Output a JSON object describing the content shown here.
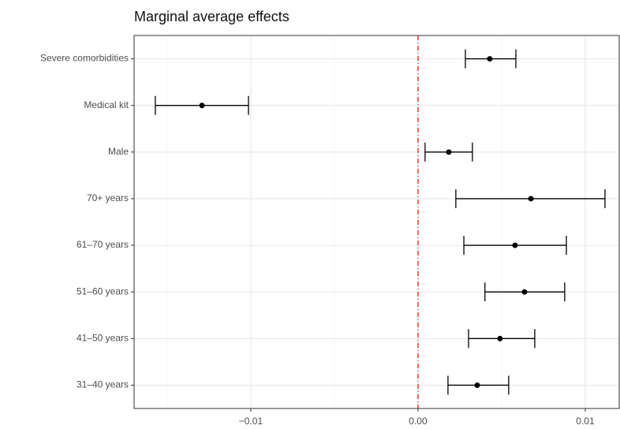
{
  "chart_data": {
    "type": "errorbar",
    "title": "Marginal average effects",
    "categories": [
      "Severe comorbidities",
      "Medical kit",
      "Male",
      "70+ years",
      "61–70 years",
      "51–60 years",
      "41–50 years",
      "31–40 years"
    ],
    "values": [
      0.00429,
      -0.01292,
      0.00184,
      0.00675,
      0.0058,
      0.00637,
      0.0049,
      0.00354
    ],
    "lower": [
      0.00283,
      -0.01571,
      0.00042,
      0.00226,
      0.00274,
      0.004,
      0.00302,
      0.00179
    ],
    "upper": [
      0.00585,
      -0.01014,
      0.00325,
      0.01118,
      0.00887,
      0.00877,
      0.00698,
      0.00542
    ],
    "color": "#000000",
    "xlim": [
      -0.01698,
      0.01203
    ],
    "xticks": [
      {
        "value": -0.01,
        "label": "−0.01"
      },
      {
        "value": 0,
        "label": "0.00"
      },
      {
        "value": 0.01,
        "label": "0.01"
      }
    ],
    "minor_xticks": [
      -0.015,
      -0.005,
      0.005
    ],
    "vline": 0,
    "vline_color": "#e41a1c",
    "grid": true
  }
}
